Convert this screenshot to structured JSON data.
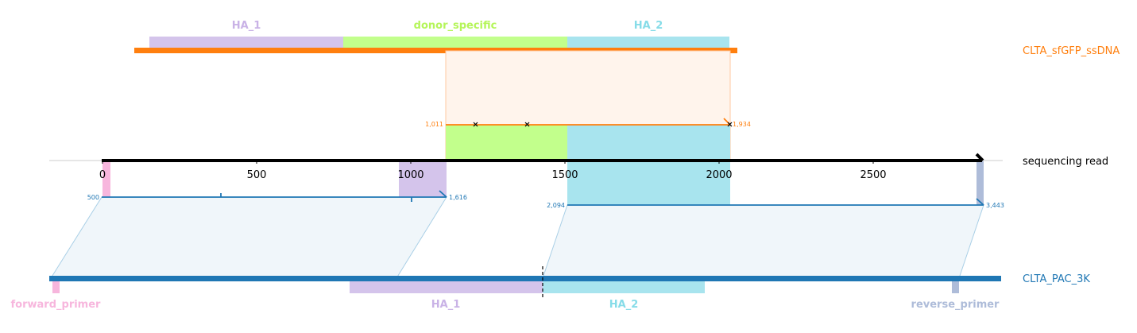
{
  "colors": {
    "orange": "#ff7f0e",
    "blue": "#1f77b4",
    "ha1": "#d4c4eb",
    "ha1_label": "#c9b2e6",
    "donor": "#c2ff8c",
    "donor_label": "#b5f55a",
    "ha2": "#a8e4ee",
    "ha2_label": "#86dce8",
    "primer_fwd": "#f7b6dd",
    "primer_rev": "#aebcd9",
    "read_axis": "#000000"
  },
  "read": {
    "name": "sequencing read",
    "ticks": [
      "0",
      "500",
      "1000",
      "1500",
      "2000",
      "2500"
    ],
    "length": 2850
  },
  "top_reference": {
    "name": "CLTA_sfGFP_ssDNA",
    "features": [
      {
        "label": "HA_1"
      },
      {
        "label": "donor_specific"
      },
      {
        "label": "HA_2"
      }
    ],
    "alignment": {
      "start_label": "1,011",
      "end_label": "1,934"
    }
  },
  "bottom_reference": {
    "name": "CLTA_PAC_3K",
    "features": [
      {
        "label": "forward_primer"
      },
      {
        "label": "HA_1"
      },
      {
        "label": "HA_2"
      },
      {
        "label": "reverse_primer"
      }
    ],
    "alignments": [
      {
        "start_label": "500",
        "end_label": "1,616"
      },
      {
        "start_label": "2,094",
        "end_label": "3,443"
      }
    ]
  }
}
